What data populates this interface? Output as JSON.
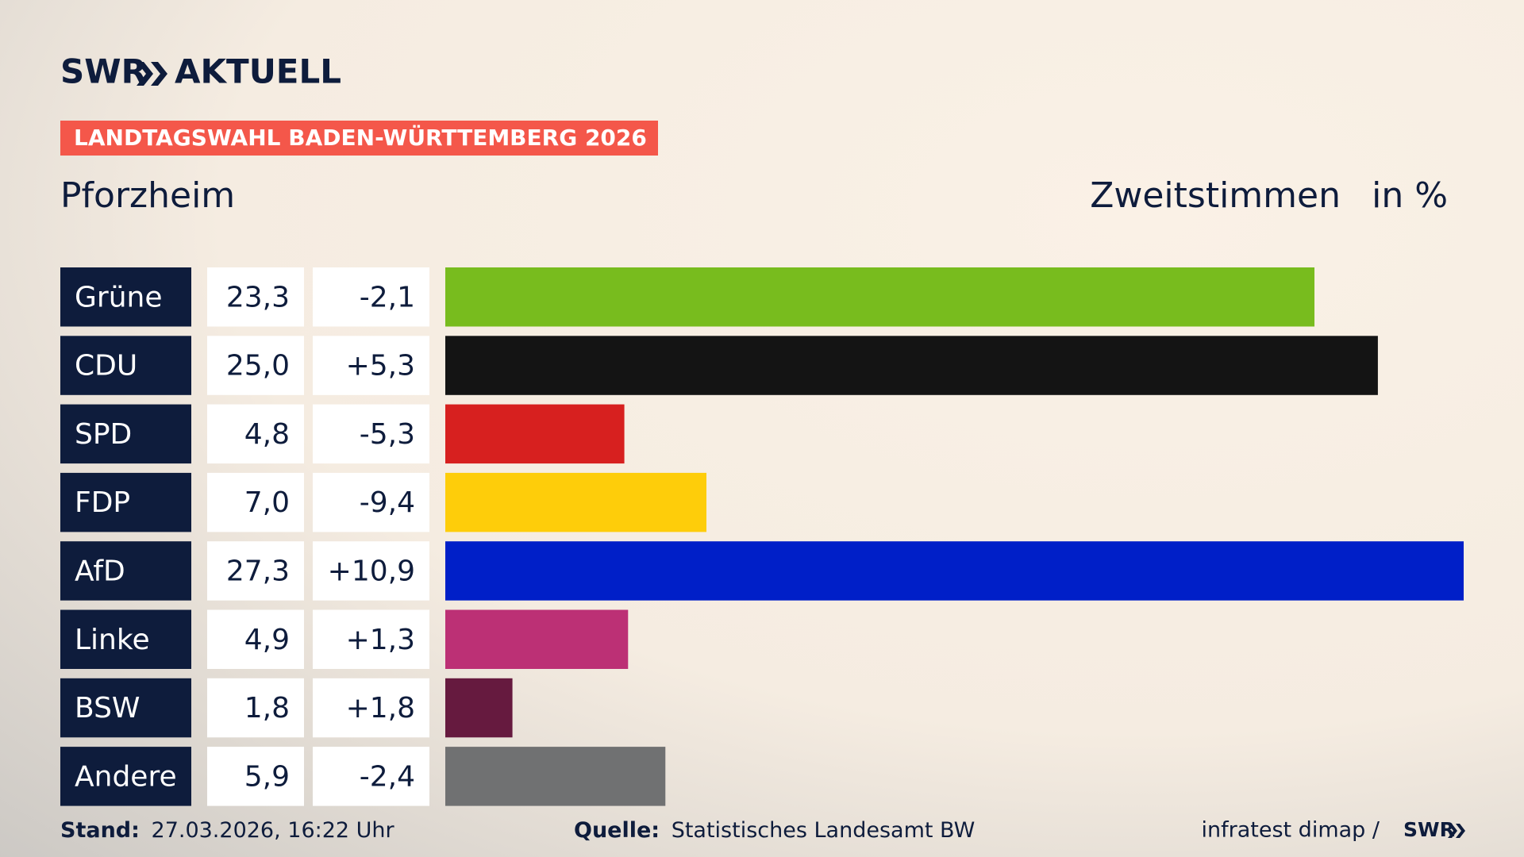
{
  "header": {
    "logo": "SWR",
    "logo_suffix": "AKTUELL",
    "banner": "LANDTAGSWAHL BADEN-WÜRTTEMBERG 2026"
  },
  "chart_data": {
    "type": "bar",
    "title": "Pforzheim",
    "subtitle": "Zweitstimmen",
    "unit_label": "in %",
    "categories": [
      "Grüne",
      "CDU",
      "SPD",
      "FDP",
      "AfD",
      "Linke",
      "BSW",
      "Andere"
    ],
    "values": [
      23.3,
      25.0,
      4.8,
      7.0,
      27.3,
      4.9,
      1.8,
      5.9
    ],
    "value_labels": [
      "23,3",
      "25,0",
      "4,8",
      "7,0",
      "27,3",
      "4,9",
      "1,8",
      "5,9"
    ],
    "changes": [
      "-2,1",
      "+5,3",
      "-5,3",
      "-9,4",
      "+10,9",
      "+1,3",
      "+1,8",
      "-2,4"
    ],
    "colors": [
      "#78bc1e",
      "#141414",
      "#d7201f",
      "#fecd0a",
      "#001fc8",
      "#bc3075",
      "#661a3f",
      "#707172"
    ]
  },
  "footer": {
    "stand_label": "Stand:",
    "stand": "27.03.2026, 16:22 Uhr",
    "source_label": "Quelle:",
    "source": "Statistisches Landesamt BW",
    "credit": "infratest dimap /",
    "credit_logo": "SWR"
  }
}
